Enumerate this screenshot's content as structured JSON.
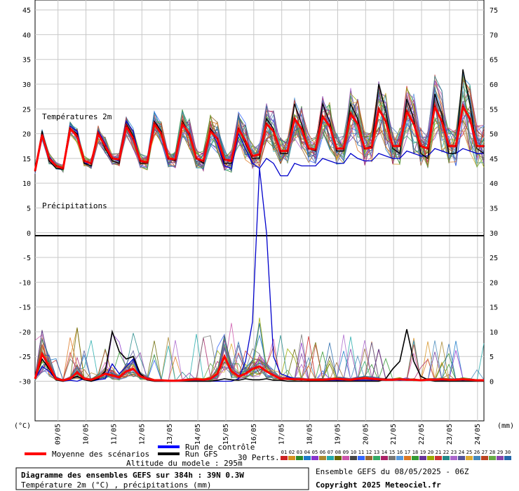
{
  "chart_data": {
    "type": "line",
    "title": "Diagramme des ensembles GEFS sur 384h : 39N 0.3W",
    "subtitle": "Température 2m (°C) , précipitations (mm)",
    "section_labels": {
      "temperature": "Températures 2m",
      "precipitation": "Précipitations"
    },
    "left_axis_unit": "(°C)",
    "right_axis_unit": "(mm)",
    "left_ticks": [
      45,
      40,
      35,
      30,
      25,
      20,
      15,
      10,
      5,
      0,
      -5,
      -10,
      -15,
      -20,
      -25,
      -30
    ],
    "right_ticks": [
      75,
      70,
      65,
      60,
      55,
      50,
      45,
      40,
      35,
      30,
      25,
      20,
      15,
      10,
      5,
      0
    ],
    "x_labels": [
      "09/05",
      "10/05",
      "11/05",
      "12/05",
      "13/05",
      "14/05",
      "15/05",
      "16/05",
      "17/05",
      "18/05",
      "19/05",
      "20/05",
      "21/05",
      "22/05",
      "23/05",
      "24/05"
    ],
    "ylim_temperature": [
      -38,
      47
    ],
    "precip_axis": {
      "zero_at_left_value": -30,
      "mm_per_degree": 1
    },
    "temp_mean": [
      12.5,
      19.8,
      15.0,
      13.5,
      13.0,
      21.0,
      19.5,
      14.5,
      14.0,
      20.0,
      17.5,
      15.0,
      14.8,
      21.5,
      19.0,
      14.5,
      14.2,
      22.0,
      20.0,
      15.0,
      14.8,
      22.0,
      20.0,
      15.0,
      14.5,
      20.5,
      19.0,
      14.8,
      14.5,
      21.0,
      18.5,
      15.5,
      15.8,
      22.0,
      20.5,
      16.5,
      16.5,
      23.0,
      21.0,
      17.0,
      16.8,
      23.5,
      21.5,
      17.0,
      17.0,
      24.0,
      22.0,
      17.0,
      17.2,
      25.0,
      22.5,
      17.5,
      17.5,
      24.5,
      22.0,
      17.5,
      17.0,
      25.5,
      22.5,
      17.5,
      17.5,
      25.5,
      23.0,
      17.5,
      17.5
    ],
    "temp_control": [
      12.5,
      20.0,
      15.5,
      13.5,
      13.0,
      21.5,
      20.5,
      14.0,
      14.0,
      20.5,
      18.0,
      15.0,
      14.5,
      22.5,
      20.5,
      14.5,
      14.0,
      22.5,
      20.5,
      15.0,
      14.5,
      22.0,
      19.5,
      15.0,
      14.0,
      21.0,
      18.0,
      13.5,
      13.0,
      20.0,
      17.0,
      14.0,
      13.0,
      15.0,
      14.0,
      11.5,
      11.5,
      14.0,
      13.5,
      13.5,
      13.5,
      15.0,
      14.5,
      14.0,
      14.0,
      16.0,
      15.0,
      14.5,
      14.5,
      16.0,
      15.5,
      15.0,
      15.0,
      16.5,
      16.0,
      15.5,
      15.5,
      17.0,
      16.5,
      16.0,
      16.0,
      17.0,
      16.5,
      16.0,
      16.0
    ],
    "temp_gfs": [
      12.5,
      20.5,
      14.5,
      13.0,
      12.8,
      21.0,
      20.0,
      14.0,
      13.5,
      20.0,
      17.0,
      14.5,
      14.0,
      22.0,
      19.5,
      14.0,
      14.0,
      22.5,
      20.5,
      15.0,
      14.5,
      22.5,
      20.0,
      15.0,
      14.0,
      21.0,
      19.0,
      14.0,
      14.0,
      21.0,
      18.0,
      15.0,
      15.0,
      23.0,
      21.0,
      16.0,
      16.0,
      26.0,
      22.0,
      17.0,
      16.5,
      26.0,
      22.5,
      16.5,
      16.5,
      26.0,
      23.0,
      17.0,
      17.5,
      30.0,
      24.5,
      17.0,
      16.0,
      27.0,
      23.0,
      16.0,
      15.0,
      28.0,
      24.0,
      16.0,
      16.0,
      33.0,
      26.0,
      17.0,
      16.0
    ],
    "precip_mean": [
      0.5,
      5.5,
      3.0,
      0.5,
      0.2,
      0.5,
      1.8,
      0.5,
      0.3,
      0.8,
      1.5,
      1.2,
      0.8,
      2.0,
      2.5,
      1.0,
      0.5,
      0.2,
      0.2,
      0.1,
      0.1,
      0.2,
      0.3,
      0.4,
      0.3,
      0.5,
      1.5,
      5.0,
      2.0,
      1.0,
      1.5,
      2.5,
      3.0,
      2.0,
      1.2,
      0.5,
      0.5,
      0.4,
      0.4,
      0.3,
      0.3,
      0.3,
      0.4,
      0.5,
      0.4,
      0.3,
      0.5,
      0.6,
      0.5,
      0.4,
      0.3,
      0.3,
      0.4,
      0.3,
      0.3,
      0.2,
      0.3,
      0.3,
      0.4,
      0.3,
      0.3,
      0.4,
      0.3,
      0.2,
      0.2
    ],
    "precip_control": [
      0.5,
      3.0,
      2.0,
      0.3,
      0.0,
      0.2,
      0.0,
      0.5,
      0.0,
      0.3,
      0.5,
      3.5,
      1.5,
      3.0,
      4.5,
      1.0,
      0.3,
      0.0,
      0.0,
      0.0,
      0.0,
      0.0,
      0.0,
      0.0,
      0.0,
      0.0,
      0.0,
      0.0,
      0.0,
      0.5,
      4.0,
      12.0,
      43.0,
      30.0,
      5.0,
      1.5,
      1.0,
      0.5,
      0.5,
      0.2,
      0.2,
      0.2,
      0.2,
      0.2,
      0.2,
      0.2,
      0.2,
      0.2,
      0.2,
      0.2,
      0.2,
      0.2,
      0.2,
      0.2,
      0.2,
      0.2,
      0.2,
      0.2,
      0.2,
      0.2,
      0.2,
      0.2,
      0.2,
      0.2,
      0.2
    ],
    "precip_gfs": [
      0.5,
      4.5,
      2.5,
      0.3,
      0.0,
      0.5,
      1.0,
      0.3,
      0.0,
      0.5,
      2.0,
      10.0,
      6.0,
      4.5,
      5.0,
      1.5,
      0.3,
      0.0,
      0.0,
      0.0,
      0.0,
      0.0,
      0.0,
      0.0,
      0.0,
      0.0,
      0.2,
      0.5,
      0.3,
      0.2,
      0.5,
      0.3,
      0.3,
      0.5,
      0.2,
      0.2,
      0.0,
      0.0,
      0.0,
      0.0,
      0.0,
      0.0,
      0.0,
      0.0,
      0.0,
      0.0,
      0.0,
      0.0,
      0.0,
      0.0,
      0.5,
      2.5,
      4.0,
      10.5,
      4.0,
      1.0,
      0.3,
      0.0,
      0.0,
      0.0,
      0.0,
      0.0,
      0.0,
      0.0,
      0.0
    ],
    "series_colors": [
      "#cc2222",
      "#d49020",
      "#2a8a2a",
      "#1a7ac8",
      "#8833cc",
      "#aa8830",
      "#22aaaa",
      "#666600",
      "#cc55aa",
      "#444444",
      "#3366ff",
      "#996633",
      "#33aa66",
      "#aa2266",
      "#777777",
      "#5599dd",
      "#dd7722",
      "#339933",
      "#663399",
      "#99aa00",
      "#cc3333",
      "#228888",
      "#aa66cc",
      "#555599",
      "#ddaa33",
      "#4488bb",
      "#bb4422",
      "#66aa44",
      "#8844aa",
      "#2266aa"
    ],
    "legend": {
      "mean_label": "Moyenne des scénarios",
      "mean_color": "#ff0000",
      "control_label": "Run de contrôle",
      "control_color": "#0000ff",
      "gfs_label": "Run GFS",
      "gfs_color": "#000000",
      "perts_label": "30 Perts.",
      "pert_numbers": [
        "01",
        "02",
        "03",
        "04",
        "05",
        "06",
        "07",
        "08",
        "09",
        "10",
        "11",
        "12",
        "13",
        "14",
        "15",
        "16",
        "17",
        "18",
        "19",
        "20",
        "21",
        "22",
        "23",
        "24",
        "25",
        "26",
        "27",
        "28",
        "29",
        "30"
      ]
    },
    "altitude_text": "Altitude du modele : 295m",
    "run_info": "Ensemble GEFS du 08/05/2025 - 06Z",
    "copyright": "Copyright 2025 Meteociel.fr"
  }
}
